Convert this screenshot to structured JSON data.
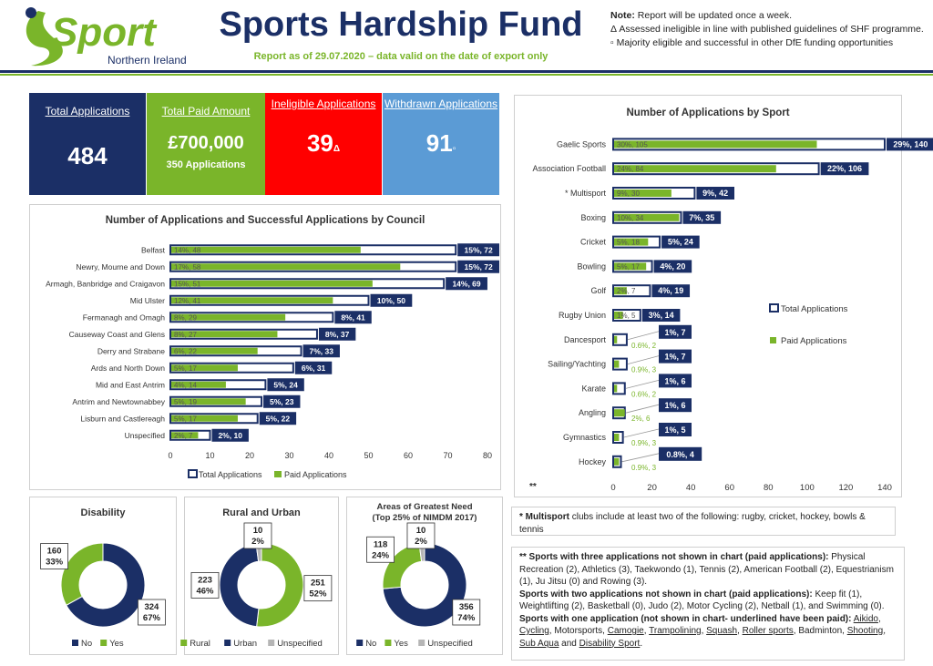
{
  "header": {
    "logo_word": "Sport",
    "logo_sub": "Northern Ireland",
    "title": "Sports Hardship Fund",
    "subtitle": "Report as of 29.07.2020 – data valid on the date of export only",
    "notes": {
      "note_label": "Note:",
      "note_text": "Report will be updated once a week.",
      "delta_note": "Δ Assessed ineligible in line with published guidelines of SHF programme.",
      "square_note": "▫ Majority eligible and successful in other DfE funding opportunities"
    }
  },
  "kpis": {
    "total_apps": {
      "label": "Total Applications",
      "value": "484",
      "color": "#1b2f66"
    },
    "paid": {
      "label": "Total Paid Amount",
      "value": "£700,000",
      "sub": "350 Applications",
      "color": "#7ab52a"
    },
    "ineligible": {
      "label": "Ineligible Applications",
      "value": "39",
      "symbol": "Δ",
      "color": "#ff0000"
    },
    "withdrawn": {
      "label": "Withdrawn Applications",
      "value": "91",
      "symbol": "▫",
      "color": "#5b9bd5"
    }
  },
  "colors": {
    "navy": "#1b2f66",
    "green": "#7ab52a",
    "grey": "#b5b5b5"
  },
  "council_chart": {
    "title": "Number of Applications and Successful Applications by Council",
    "categories": [
      "Belfast",
      "Newry, Mourne and Down",
      "Armagh, Banbridge and Craigavon",
      "Mid Ulster",
      "Fermanagh and Omagh",
      "Causeway Coast and Glens",
      "Derry and Strabane",
      "Ards and North Down",
      "Mid and East Antrim",
      "Antrim and Newtownabbey",
      "Lisburn and Castlereagh",
      "Unspecified"
    ],
    "total": [
      72,
      72,
      69,
      50,
      41,
      37,
      33,
      31,
      24,
      23,
      22,
      10
    ],
    "paid": [
      48,
      58,
      51,
      41,
      29,
      27,
      22,
      17,
      14,
      19,
      17,
      7
    ],
    "total_labels": [
      "15%, 72",
      "15%, 72",
      "14%, 69",
      "10%, 50",
      "8%, 41",
      "8%, 37",
      "7%, 33",
      "6%, 31",
      "5%, 24",
      "5%, 23",
      "5%, 22",
      "2%, 10"
    ],
    "paid_labels": [
      "14%, 48",
      "17%, 58",
      "15%, 51",
      "12%, 41",
      "8%, 29",
      "8%, 27",
      "6%, 22",
      "5%, 17",
      "4%, 14",
      "5%, 19",
      "5%, 17",
      "2%, 7"
    ],
    "ticks": [
      "0",
      "10",
      "20",
      "30",
      "40",
      "50",
      "60",
      "70",
      "80"
    ],
    "xlim": [
      0,
      80
    ],
    "legend": [
      "Total Applications",
      "Paid Applications"
    ]
  },
  "sport_chart": {
    "title": "Number of Applications by Sport",
    "categories": [
      "Gaelic Sports",
      "Association Football",
      "* Multisport",
      "Boxing",
      "Cricket",
      "Bowling",
      "Golf",
      "Rugby Union",
      "Dancesport",
      "Sailing/Yachting",
      "Karate",
      "Angling",
      "Gymnastics",
      "Hockey"
    ],
    "total": [
      140,
      106,
      42,
      35,
      24,
      20,
      19,
      14,
      7,
      7,
      6,
      6,
      5,
      4
    ],
    "paid": [
      105,
      84,
      30,
      34,
      18,
      17,
      7,
      5,
      2,
      3,
      2,
      6,
      3,
      3
    ],
    "total_labels": [
      "29%, 140",
      "22%, 106",
      "9%, 42",
      "7%, 35",
      "5%, 24",
      "4%, 20",
      "4%, 19",
      "3%, 14",
      "1%, 7",
      "1%, 7",
      "1%, 6",
      "1%, 6",
      "1%, 5",
      "0.8%, 4"
    ],
    "paid_labels": [
      "30%, 105",
      "24%, 84",
      "9%, 30",
      "10%, 34",
      "5%, 18",
      "5%, 17",
      "2%, 7",
      "1%, 5",
      "0.6%, 2",
      "0.9%, 3",
      "0.6%, 2",
      "2%, 6",
      "0.9%, 3",
      "0.9%, 3"
    ],
    "ticks": [
      "0",
      "20",
      "40",
      "60",
      "80",
      "100",
      "120",
      "140"
    ],
    "xlim": [
      0,
      140
    ],
    "axis_note": "**",
    "legend": [
      "Total Applications",
      "Paid Applications"
    ]
  },
  "donuts": [
    {
      "title": "Disability",
      "title2": "",
      "values": [
        324,
        160
      ],
      "labels": [
        "324\n67%",
        "160\n33%"
      ],
      "colors": [
        "#1b2f66",
        "#7ab52a"
      ],
      "legend": [
        "No",
        "Yes"
      ]
    },
    {
      "title": "Rural and Urban",
      "title2": "",
      "values": [
        251,
        223,
        10
      ],
      "labels": [
        "251\n52%",
        "223\n46%",
        "10\n2%"
      ],
      "colors": [
        "#7ab52a",
        "#1b2f66",
        "#b5b5b5"
      ],
      "legend": [
        "Rural",
        "Urban",
        "Unspecified"
      ]
    },
    {
      "title": "Areas of Greatest Need",
      "title2": "(Top 25% of NIMDM 2017)",
      "values": [
        356,
        118,
        10
      ],
      "labels": [
        "356\n74%",
        "118\n24%",
        "10\n2%"
      ],
      "colors": [
        "#1b2f66",
        "#7ab52a",
        "#b5b5b5"
      ],
      "legend": [
        "No",
        "Yes",
        "Unspecified"
      ]
    }
  ],
  "footnotes": {
    "multisport_b": "* Multisport",
    "multisport_t": " clubs include at least two of the following: rugby, cricket, hockey, bowls & tennis",
    "three_b": "** Sports with three applications not shown in chart (paid applications):",
    "three_t": " Physical Recreation (2), Athletics (3), Taekwondo (1), Tennis (2), American Football (2), Equestrianism (1), Ju Jitsu (0) and Rowing (3).",
    "two_b": "Sports with two applications not shown in chart (paid applications):",
    "two_t": " Keep fit (1), Weightlifting (2), Basketball (0), Judo (2), Motor Cycling (2), Netball (1), and Swimming (0).",
    "one_b": "Sports with one application (not shown in chart- underlined have been paid):",
    "one_items": [
      {
        "t": "Aikido",
        "u": true,
        "s": ", "
      },
      {
        "t": "Cycling",
        "u": true,
        "s": ", "
      },
      {
        "t": "Motorsports",
        "u": false,
        "s": ", "
      },
      {
        "t": "Camogie",
        "u": true,
        "s": ", "
      },
      {
        "t": "Trampolining",
        "u": true,
        "s": ", "
      },
      {
        "t": "Squash",
        "u": true,
        "s": ", "
      },
      {
        "t": "Roller sports",
        "u": true,
        "s": ", "
      },
      {
        "t": "Badminton",
        "u": false,
        "s": ", "
      },
      {
        "t": "Shooting",
        "u": true,
        "s": ", "
      },
      {
        "t": "Sub Aqua",
        "u": true,
        "s": " and "
      },
      {
        "t": "Disability Sport",
        "u": true,
        "s": "."
      }
    ]
  }
}
